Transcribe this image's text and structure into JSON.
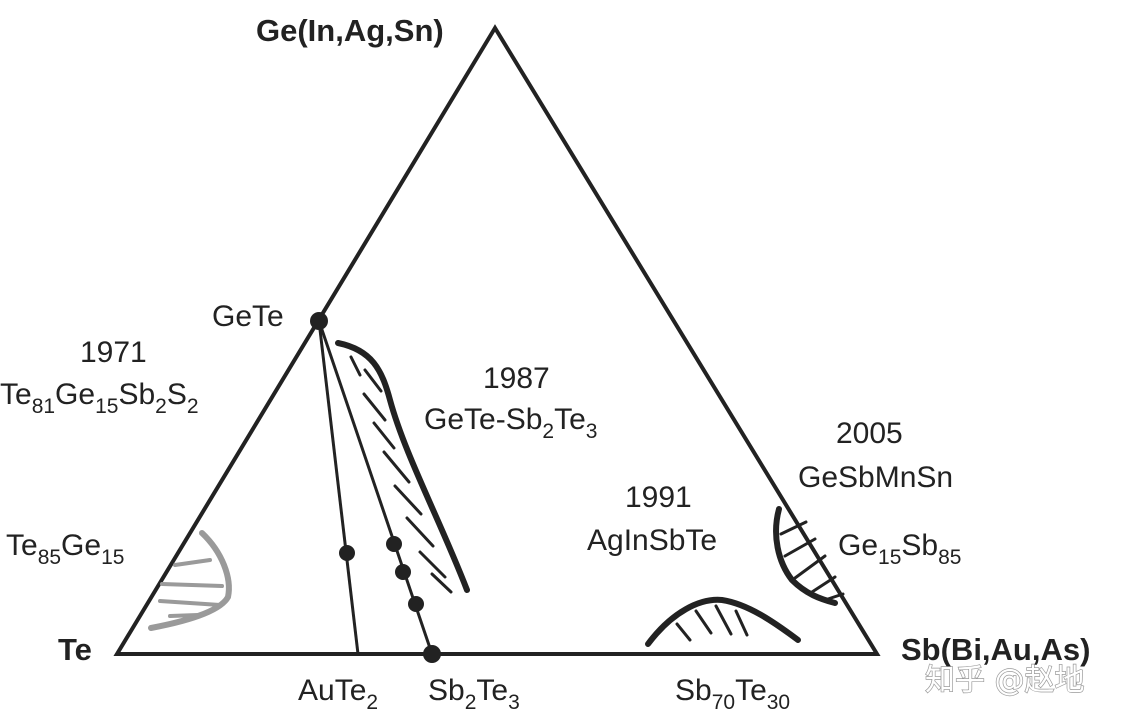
{
  "vertices": {
    "top": "Ge(In,Ag,Sn)",
    "left": "Te",
    "right": "Sb(Bi,Au,As)"
  },
  "points": {
    "gete": "GeTe"
  },
  "compounds": {
    "aute2": {
      "base": "AuTe",
      "sub": "2"
    },
    "sb2te3": {
      "base1": "Sb",
      "sub1": "2",
      "base2": "Te",
      "sub2": "3"
    },
    "sb70te30": {
      "base1": "Sb",
      "sub1": "70",
      "base2": "Te",
      "sub2": "30"
    }
  },
  "regions": {
    "r1971": {
      "year": "1971",
      "formula": [
        {
          "t": "Te",
          "s": false
        },
        {
          "t": "81",
          "s": true
        },
        {
          "t": "Ge",
          "s": false
        },
        {
          "t": "15",
          "s": true
        },
        {
          "t": "Sb",
          "s": false
        },
        {
          "t": "2",
          "s": true
        },
        {
          "t": "S",
          "s": false
        },
        {
          "t": "2",
          "s": true
        }
      ]
    },
    "te85ge15": {
      "formula": [
        {
          "t": "Te",
          "s": false
        },
        {
          "t": "85",
          "s": true
        },
        {
          "t": "Ge",
          "s": false
        },
        {
          "t": "15",
          "s": true
        }
      ]
    },
    "r1987": {
      "year": "1987",
      "formula": [
        {
          "t": "GeTe-Sb",
          "s": false
        },
        {
          "t": "2",
          "s": true
        },
        {
          "t": "Te",
          "s": false
        },
        {
          "t": "3",
          "s": true
        }
      ]
    },
    "r1991": {
      "year": "1991",
      "name": "AgInSbTe"
    },
    "r2005": {
      "year": "2005",
      "name": "GeSbMnSn"
    },
    "ge15sb85": {
      "formula": [
        {
          "t": "Ge",
          "s": false
        },
        {
          "t": "15",
          "s": true
        },
        {
          "t": "Sb",
          "s": false
        },
        {
          "t": "85",
          "s": true
        }
      ]
    }
  },
  "watermark": "知乎 @赵地",
  "colors": {
    "line": "#222222",
    "gray_region": "#9a9a9a"
  }
}
